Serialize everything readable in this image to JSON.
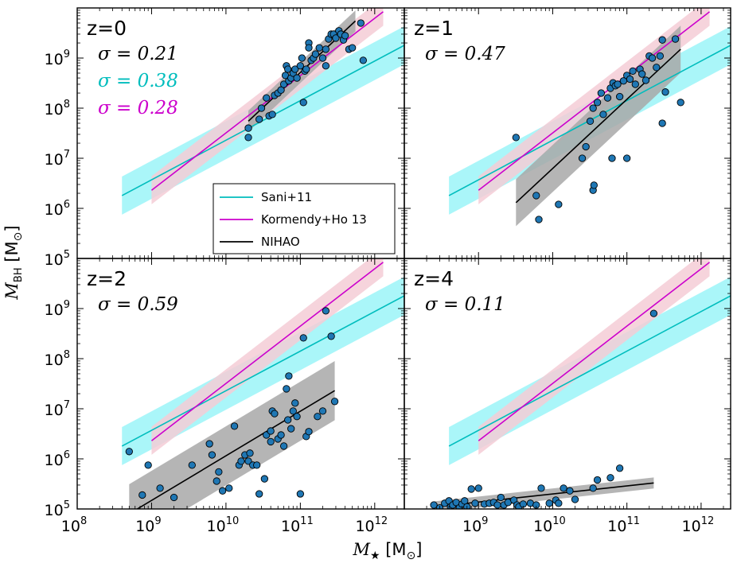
{
  "figure": {
    "xlabel_main": "M",
    "xlabel_sub": "★",
    "xlabel_unit_open": " [M",
    "xlabel_unit_sub": "⊙",
    "xlabel_unit_close": "]",
    "ylabel_main": "M",
    "ylabel_sub": "BH",
    "ylabel_unit_open": " [M",
    "ylabel_unit_sub": "⊙",
    "ylabel_unit_close": "]",
    "x_tick_base": "10",
    "y_tick_base": "10"
  },
  "colors": {
    "sani": "#00bdbd",
    "sani_band": "#aaf6f9",
    "kormendy": "#cc00cc",
    "kormendy_band": "#f4cdd6",
    "nihao": "#000000",
    "nihao_band": "#a8a8a8",
    "points": "#1f77b4"
  },
  "legend": {
    "items": [
      {
        "key": "sani",
        "label": "Sani+11"
      },
      {
        "key": "kormendy",
        "label": "Kormendy+Ho 13"
      },
      {
        "key": "nihao",
        "label": "NIHAO"
      }
    ]
  },
  "chart_data": [
    {
      "type": "scatter",
      "panel": "z=0",
      "title": "z=0",
      "xscale": "log",
      "yscale": "log",
      "xlim": [
        100000000.0,
        2500000000000.0
      ],
      "ylim": [
        100000.0,
        10000000000.0
      ],
      "x_ticks_exp": [
        8,
        9,
        10,
        11,
        12
      ],
      "y_ticks_exp": [
        5,
        6,
        7,
        8,
        9
      ],
      "show_x_tick_labels": false,
      "show_y_tick_labels": true,
      "grid": false,
      "legend_position": "lower-right",
      "sigmas": [
        {
          "text": "σ = 0.21",
          "color_key": "nihao"
        },
        {
          "text": "σ = 0.38",
          "color_key": "sani"
        },
        {
          "text": "σ = 0.28",
          "color_key": "kormendy"
        }
      ],
      "sani": {
        "x": [
          400000000.0,
          2500000000000.0
        ],
        "y": [
          1800000.0,
          1800000000.0
        ],
        "dex": 0.38
      },
      "kormendy": {
        "x": [
          1000000000.0,
          1300000000000.0
        ],
        "y": [
          2300000.0,
          8400000000.0
        ],
        "dex": 0.28
      },
      "nihao": {
        "x": [
          20000000000.0,
          550000000000.0
        ],
        "y": [
          55000000.0,
          5500000000.0
        ],
        "dex": 0.21
      },
      "points": [
        [
          20000000000.0,
          26000000.0
        ],
        [
          20000000000.0,
          40000000.0
        ],
        [
          28000000000.0,
          60000000.0
        ],
        [
          30000000000.0,
          100000000.0
        ],
        [
          35000000000.0,
          160000000.0
        ],
        [
          38000000000.0,
          70000000.0
        ],
        [
          42000000000.0,
          75000000.0
        ],
        [
          45000000000.0,
          180000000.0
        ],
        [
          50000000000.0,
          200000000.0
        ],
        [
          55000000000.0,
          230000000.0
        ],
        [
          60000000000.0,
          300000000.0
        ],
        [
          63000000000.0,
          450000000.0
        ],
        [
          65000000000.0,
          700000000.0
        ],
        [
          68000000000.0,
          600000000.0
        ],
        [
          70000000000.0,
          350000000.0
        ],
        [
          75000000000.0,
          400000000.0
        ],
        [
          80000000000.0,
          500000000.0
        ],
        [
          85000000000.0,
          600000000.0
        ],
        [
          90000000000.0,
          400000000.0
        ],
        [
          100000000000.0,
          700000000.0
        ],
        [
          105000000000.0,
          1000000000.0
        ],
        [
          110000000000.0,
          130000000.0
        ],
        [
          115000000000.0,
          550000000.0
        ],
        [
          120000000000.0,
          600000000.0
        ],
        [
          130000000000.0,
          2000000000.0
        ],
        [
          140000000000.0,
          900000000.0
        ],
        [
          150000000000.0,
          1000000000.0
        ],
        [
          160000000000.0,
          1200000000.0
        ],
        [
          180000000000.0,
          1600000000.0
        ],
        [
          200000000000.0,
          1000000000.0
        ],
        [
          220000000000.0,
          1500000000.0
        ],
        [
          240000000000.0,
          2400000000.0
        ],
        [
          260000000000.0,
          3000000000.0
        ],
        [
          280000000000.0,
          3000000000.0
        ],
        [
          300000000000.0,
          2500000000.0
        ],
        [
          330000000000.0,
          3500000000.0
        ],
        [
          350000000000.0,
          3000000000.0
        ],
        [
          380000000000.0,
          2300000000.0
        ],
        [
          400000000000.0,
          2800000000.0
        ],
        [
          450000000000.0,
          1500000000.0
        ],
        [
          500000000000.0,
          1600000000.0
        ],
        [
          650000000000.0,
          5000000000.0
        ],
        [
          700000000000.0,
          900000000.0
        ],
        [
          220000000000.0,
          700000000.0
        ],
        [
          130000000000.0,
          1600000000.0
        ]
      ]
    },
    {
      "type": "scatter",
      "panel": "z=1",
      "title": "z=1",
      "xscale": "log",
      "yscale": "log",
      "xlim": [
        100000000.0,
        2500000000000.0
      ],
      "ylim": [
        100000.0,
        10000000000.0
      ],
      "x_ticks_exp": [
        8,
        9,
        10,
        11,
        12
      ],
      "y_ticks_exp": [
        5,
        6,
        7,
        8,
        9
      ],
      "show_x_tick_labels": false,
      "show_y_tick_labels": false,
      "grid": false,
      "sigmas": [
        {
          "text": "σ = 0.47",
          "color_key": "nihao"
        }
      ],
      "sani": {
        "x": [
          400000000.0,
          2500000000000.0
        ],
        "y": [
          1800000.0,
          1800000000.0
        ],
        "dex": 0.38
      },
      "kormendy": {
        "x": [
          1000000000.0,
          1300000000000.0
        ],
        "y": [
          2300000.0,
          8400000000.0
        ],
        "dex": 0.28
      },
      "nihao": {
        "x": [
          3200000000.0,
          530000000000.0
        ],
        "y": [
          1300000.0,
          1500000000.0
        ],
        "dex": 0.47
      },
      "points": [
        [
          3200000000.0,
          26000000.0
        ],
        [
          6000000000.0,
          1800000.0
        ],
        [
          6500000000.0,
          600000.0
        ],
        [
          12000000000.0,
          1200000.0
        ],
        [
          25000000000.0,
          10000000.0
        ],
        [
          28000000000.0,
          17000000.0
        ],
        [
          32000000000.0,
          55000000.0
        ],
        [
          35000000000.0,
          100000000.0
        ],
        [
          35000000000.0,
          2300000.0
        ],
        [
          36000000000.0,
          2900000.0
        ],
        [
          40000000000.0,
          130000000.0
        ],
        [
          45000000000.0,
          200000000.0
        ],
        [
          48000000000.0,
          75000000.0
        ],
        [
          55000000000.0,
          160000000.0
        ],
        [
          60000000000.0,
          250000000.0
        ],
        [
          63000000000.0,
          10000000.0
        ],
        [
          65000000000.0,
          320000000.0
        ],
        [
          70000000000.0,
          280000000.0
        ],
        [
          75000000000.0,
          300000000.0
        ],
        [
          80000000000.0,
          170000000.0
        ],
        [
          90000000000.0,
          350000000.0
        ],
        [
          100000000000.0,
          10000000.0
        ],
        [
          100000000000.0,
          450000000.0
        ],
        [
          110000000000.0,
          380000000.0
        ],
        [
          120000000000.0,
          550000000.0
        ],
        [
          130000000000.0,
          300000000.0
        ],
        [
          150000000000.0,
          600000000.0
        ],
        [
          160000000000.0,
          480000000.0
        ],
        [
          180000000000.0,
          360000000.0
        ],
        [
          200000000000.0,
          1100000000.0
        ],
        [
          220000000000.0,
          1000000000.0
        ],
        [
          250000000000.0,
          650000000.0
        ],
        [
          280000000000.0,
          1100000000.0
        ],
        [
          300000000000.0,
          2300000000.0
        ],
        [
          300000000000.0,
          50000000.0
        ],
        [
          330000000000.0,
          210000000.0
        ],
        [
          450000000000.0,
          2400000000.0
        ],
        [
          530000000000.0,
          130000000.0
        ]
      ]
    },
    {
      "type": "scatter",
      "panel": "z=2",
      "title": "z=2",
      "xscale": "log",
      "yscale": "log",
      "xlim": [
        100000000.0,
        2500000000000.0
      ],
      "ylim": [
        100000.0,
        10000000000.0
      ],
      "x_ticks_exp": [
        8,
        9,
        10,
        11,
        12
      ],
      "y_ticks_exp": [
        5,
        6,
        7,
        8,
        9
      ],
      "show_x_tick_labels": true,
      "show_y_tick_labels": true,
      "x_tick_labels_shown": [
        8,
        9,
        10,
        11,
        12
      ],
      "y_tick_labels_shown": [
        5,
        6,
        7,
        8,
        9
      ],
      "grid": false,
      "sigmas": [
        {
          "text": "σ = 0.59",
          "color_key": "nihao"
        }
      ],
      "sani": {
        "x": [
          400000000.0,
          2500000000000.0
        ],
        "y": [
          1800000.0,
          1800000000.0
        ],
        "dex": 0.38
      },
      "kormendy": {
        "x": [
          1000000000.0,
          1300000000000.0
        ],
        "y": [
          2300000.0,
          8400000000.0
        ],
        "dex": 0.28
      },
      "nihao": {
        "x": [
          500000000.0,
          290000000000.0
        ],
        "y": [
          80000.0,
          23000000.0
        ],
        "dex": 0.59
      },
      "points": [
        [
          500000000.0,
          1400000.0
        ],
        [
          750000000.0,
          190000.0
        ],
        [
          900000000.0,
          750000.0
        ],
        [
          1300000000.0,
          260000.0
        ],
        [
          2000000000.0,
          170000.0
        ],
        [
          3500000000.0,
          750000.0
        ],
        [
          6000000000.0,
          2000000.0
        ],
        [
          6500000000.0,
          1200000.0
        ],
        [
          7500000000.0,
          360000.0
        ],
        [
          8000000000.0,
          550000.0
        ],
        [
          9000000000.0,
          230000.0
        ],
        [
          11000000000.0,
          260000.0
        ],
        [
          13000000000.0,
          4500000.0
        ],
        [
          15000000000.0,
          750000.0
        ],
        [
          16000000000.0,
          900000.0
        ],
        [
          18000000000.0,
          1200000.0
        ],
        [
          20000000000.0,
          900000.0
        ],
        [
          21000000000.0,
          1300000.0
        ],
        [
          23000000000.0,
          750000.0
        ],
        [
          26000000000.0,
          750000.0
        ],
        [
          28000000000.0,
          200000.0
        ],
        [
          33000000000.0,
          400000.0
        ],
        [
          35000000000.0,
          3000000.0
        ],
        [
          40000000000.0,
          3600000.0
        ],
        [
          42000000000.0,
          9000000.0
        ],
        [
          45000000000.0,
          8000000.0
        ],
        [
          50000000000.0,
          2500000.0
        ],
        [
          55000000000.0,
          3000000.0
        ],
        [
          60000000000.0,
          1800000.0
        ],
        [
          65000000000.0,
          25000000.0
        ],
        [
          68000000000.0,
          6000000.0
        ],
        [
          70000000000.0,
          45000000.0
        ],
        [
          75000000000.0,
          4000000.0
        ],
        [
          80000000000.0,
          9000000.0
        ],
        [
          85000000000.0,
          13000000.0
        ],
        [
          90000000000.0,
          7000000.0
        ],
        [
          100000000000.0,
          200000.0
        ],
        [
          110000000000.0,
          260000000.0
        ],
        [
          120000000000.0,
          2800000.0
        ],
        [
          130000000000.0,
          3500000.0
        ],
        [
          170000000000.0,
          7000000.0
        ],
        [
          200000000000.0,
          9000000.0
        ],
        [
          220000000000.0,
          900000000.0
        ],
        [
          260000000000.0,
          280000000.0
        ],
        [
          290000000000.0,
          14000000.0
        ],
        [
          40000000000.0,
          2200000.0
        ]
      ]
    },
    {
      "type": "scatter",
      "panel": "z=4",
      "title": "z=4",
      "xscale": "log",
      "yscale": "log",
      "xlim": [
        100000000.0,
        2500000000000.0
      ],
      "ylim": [
        100000.0,
        10000000000.0
      ],
      "x_ticks_exp": [
        8,
        9,
        10,
        11,
        12
      ],
      "y_ticks_exp": [
        5,
        6,
        7,
        8,
        9
      ],
      "show_x_tick_labels": true,
      "show_y_tick_labels": false,
      "x_tick_labels_shown": [
        9,
        10,
        11,
        12
      ],
      "grid": false,
      "sigmas": [
        {
          "text": "σ = 0.11",
          "color_key": "nihao"
        }
      ],
      "sani": {
        "x": [
          400000000.0,
          2500000000000.0
        ],
        "y": [
          1800000.0,
          1800000000.0
        ],
        "dex": 0.38
      },
      "kormendy": {
        "x": [
          1000000000.0,
          1300000000000.0
        ],
        "y": [
          2300000.0,
          8400000000.0
        ],
        "dex": 0.28
      },
      "nihao": {
        "x": [
          250000000.0,
          230000000000.0
        ],
        "y": [
          110000.0,
          330000.0
        ],
        "dex": 0.11
      },
      "points": [
        [
          250000000.0,
          120000.0
        ],
        [
          300000000.0,
          105000.0
        ],
        [
          350000000.0,
          130000.0
        ],
        [
          400000000.0,
          145000.0
        ],
        [
          420000000.0,
          110000.0
        ],
        [
          450000000.0,
          120000.0
        ],
        [
          500000000.0,
          135000.0
        ],
        [
          550000000.0,
          105000.0
        ],
        [
          600000000.0,
          125000.0
        ],
        [
          650000000.0,
          145000.0
        ],
        [
          700000000.0,
          110000.0
        ],
        [
          800000000.0,
          250000.0
        ],
        [
          900000000.0,
          130000.0
        ],
        [
          1000000000.0,
          260000.0
        ],
        [
          1200000000.0,
          125000.0
        ],
        [
          1400000000.0,
          130000.0
        ],
        [
          1600000000.0,
          135000.0
        ],
        [
          1800000000.0,
          120000.0
        ],
        [
          2000000000.0,
          170000.0
        ],
        [
          2200000000.0,
          120000.0
        ],
        [
          2500000000.0,
          135000.0
        ],
        [
          3000000000.0,
          150000.0
        ],
        [
          3300000000.0,
          120000.0
        ],
        [
          3500000000.0,
          110000.0
        ],
        [
          4000000000.0,
          125000.0
        ],
        [
          5000000000.0,
          130000.0
        ],
        [
          6000000000.0,
          120000.0
        ],
        [
          7000000000.0,
          260000.0
        ],
        [
          9000000000.0,
          130000.0
        ],
        [
          11000000000.0,
          150000.0
        ],
        [
          12000000000.0,
          130000.0
        ],
        [
          14000000000.0,
          260000.0
        ],
        [
          17000000000.0,
          230000.0
        ],
        [
          20000000000.0,
          155000.0
        ],
        [
          35000000000.0,
          260000.0
        ],
        [
          40000000000.0,
          380000.0
        ],
        [
          60000000000.0,
          420000.0
        ],
        [
          80000000000.0,
          650000.0
        ],
        [
          230000000000.0,
          800000000.0
        ]
      ]
    }
  ]
}
